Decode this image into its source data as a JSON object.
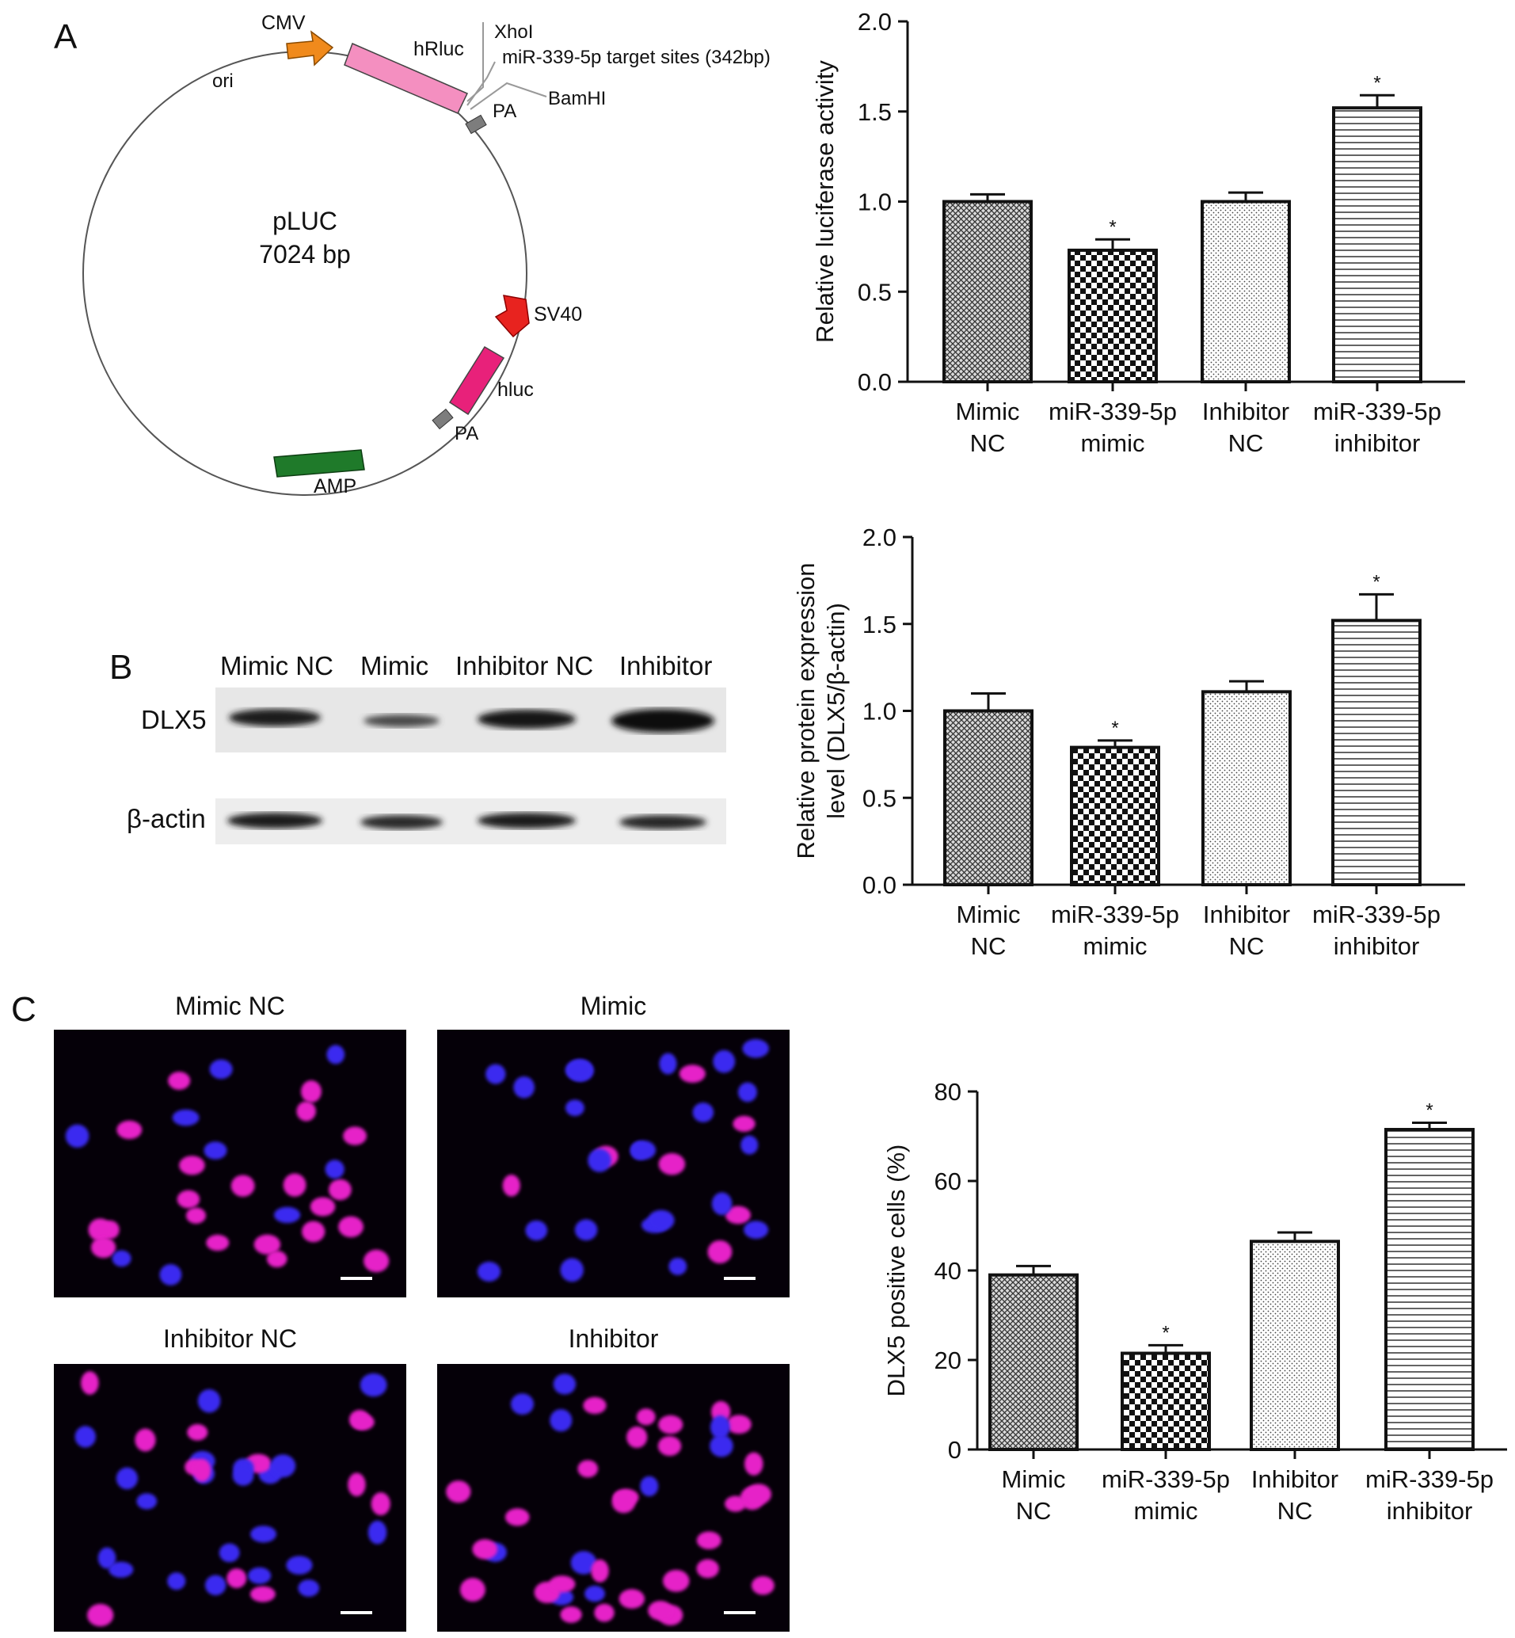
{
  "panels": {
    "a": {
      "letter": "A",
      "plasmid": {
        "name": "pLUC",
        "size": "7024 bp",
        "features": {
          "cmv": "CMV",
          "hrluc": "hRluc",
          "xhoi": "XhoI",
          "target": "miR-339-5p target sites (342bp)",
          "bamhi": "BamHI",
          "pa1": "PA",
          "ori": "ori",
          "sv40": "SV40",
          "hluc": "hluc",
          "pa2": "PA",
          "amp": "AMP"
        },
        "colors": {
          "cmv": "#f08a1c",
          "hrluc": "#f48fc0",
          "sv40": "#e8231f",
          "hluc": "#e8217a",
          "amp": "#1f7a2a",
          "pa": "#7d7d7d"
        }
      }
    },
    "b": {
      "letter": "B",
      "blot": {
        "lanes": [
          "Mimic NC",
          "Mimic",
          "Inhibitor NC",
          "Inhibitor"
        ],
        "rows": [
          "DLX5",
          "β-actin"
        ]
      }
    },
    "c": {
      "letter": "C",
      "images": [
        "Mimic NC",
        "Mimic",
        "Inhibitor NC",
        "Inhibitor"
      ]
    }
  },
  "chart_data": [
    {
      "type": "bar",
      "categories": [
        [
          "Mimic",
          "NC"
        ],
        [
          "miR-339-5p",
          "mimic"
        ],
        [
          "Inhibitor",
          "NC"
        ],
        [
          "miR-339-5p",
          "inhibitor"
        ]
      ],
      "values": [
        1.0,
        0.73,
        1.0,
        1.52
      ],
      "errors": [
        0.04,
        0.06,
        0.05,
        0.07
      ],
      "significance": [
        "",
        "*",
        "",
        "*"
      ],
      "ylabel": [
        "Relative luciferase activity"
      ],
      "ylim": [
        0,
        2.0
      ],
      "yticks": [
        "0.0",
        "0.5",
        "1.0",
        "1.5",
        "2.0"
      ],
      "patterns": [
        "crosshatch",
        "checker",
        "dots",
        "hlines"
      ]
    },
    {
      "type": "bar",
      "categories": [
        [
          "Mimic",
          "NC"
        ],
        [
          "miR-339-5p",
          "mimic"
        ],
        [
          "Inhibitor",
          "NC"
        ],
        [
          "miR-339-5p",
          "inhibitor"
        ]
      ],
      "values": [
        1.0,
        0.79,
        1.11,
        1.52
      ],
      "errors": [
        0.1,
        0.04,
        0.06,
        0.15
      ],
      "significance": [
        "",
        "*",
        "",
        "*"
      ],
      "ylabel": [
        "Relative protein expression",
        "level (DLX5/β-actin)"
      ],
      "ylim": [
        0,
        2.0
      ],
      "yticks": [
        "0.0",
        "0.5",
        "1.0",
        "1.5",
        "2.0"
      ],
      "patterns": [
        "crosshatch",
        "checker",
        "dots",
        "hlines"
      ]
    },
    {
      "type": "bar",
      "categories": [
        [
          "Mimic",
          "NC"
        ],
        [
          "miR-339-5p",
          "mimic"
        ],
        [
          "Inhibitor",
          "NC"
        ],
        [
          "miR-339-5p",
          "inhibitor"
        ]
      ],
      "values": [
        39,
        21.5,
        46.5,
        71.5
      ],
      "errors": [
        2.0,
        1.8,
        2.0,
        1.5
      ],
      "significance": [
        "",
        "*",
        "",
        "*"
      ],
      "ylabel": [
        "DLX5 positive cells (%)"
      ],
      "ylim": [
        0,
        80
      ],
      "yticks": [
        "0",
        "20",
        "40",
        "60",
        "80"
      ],
      "patterns": [
        "crosshatch",
        "checker",
        "dots",
        "hlines"
      ]
    }
  ]
}
